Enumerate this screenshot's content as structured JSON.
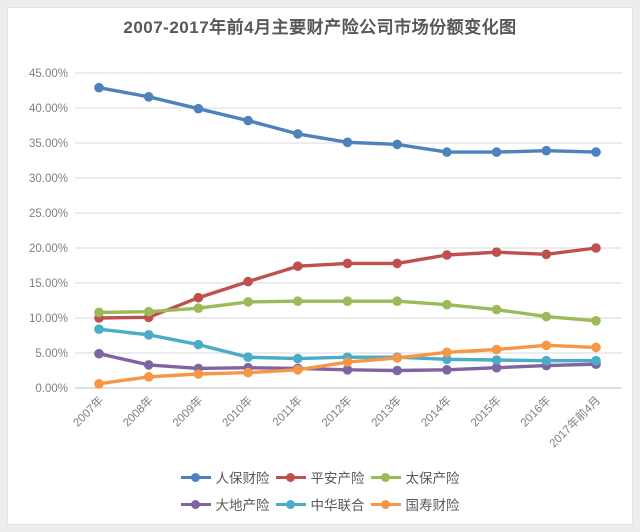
{
  "chart_data": {
    "type": "line",
    "title": "2007-2017年前4月主要财产险公司市场份额变化图",
    "xlabel": "",
    "ylabel": "",
    "ylim": [
      0,
      45
    ],
    "grid": true,
    "legend_position": "bottom",
    "y_ticks": [
      "0.00%",
      "5.00%",
      "10.00%",
      "15.00%",
      "20.00%",
      "25.00%",
      "30.00%",
      "35.00%",
      "40.00%",
      "45.00%"
    ],
    "categories": [
      "2007年",
      "2008年",
      "2009年",
      "2010年",
      "2011年",
      "2012年",
      "2013年",
      "2014年",
      "2015年",
      "2016年",
      "2017年前4月"
    ],
    "series": [
      {
        "key": "picc",
        "name": "人保财险",
        "color": "#4F81BD",
        "values": [
          42.9,
          41.6,
          39.9,
          38.2,
          36.3,
          35.1,
          34.8,
          33.7,
          33.7,
          33.9,
          33.7
        ]
      },
      {
        "key": "pingan",
        "name": "平安产险",
        "color": "#C0504D",
        "values": [
          10.0,
          10.1,
          12.9,
          15.2,
          17.4,
          17.8,
          17.8,
          19.0,
          19.4,
          19.1,
          20.0
        ]
      },
      {
        "key": "cpic",
        "name": "太保产险",
        "color": "#9BBB59",
        "values": [
          10.8,
          10.9,
          11.4,
          12.3,
          12.4,
          12.4,
          12.4,
          11.9,
          11.2,
          10.2,
          9.6
        ]
      },
      {
        "key": "dadi",
        "name": "大地产险",
        "color": "#8064A2",
        "values": [
          4.9,
          3.3,
          2.8,
          2.9,
          2.8,
          2.6,
          2.5,
          2.6,
          2.9,
          3.2,
          3.4
        ]
      },
      {
        "key": "zhonghua",
        "name": "中华联合",
        "color": "#4BACC6",
        "values": [
          8.4,
          7.6,
          6.2,
          4.4,
          4.2,
          4.4,
          4.4,
          4.1,
          4.0,
          3.9,
          3.9
        ]
      },
      {
        "key": "guoshou",
        "name": "国寿财险",
        "color": "#F79646",
        "values": [
          0.6,
          1.6,
          2.0,
          2.2,
          2.6,
          3.7,
          4.3,
          5.1,
          5.5,
          6.1,
          5.8
        ]
      }
    ],
    "legend_rows": [
      [
        "picc",
        "pingan",
        "cpic"
      ],
      [
        "dadi",
        "zhonghua",
        "guoshou"
      ]
    ]
  },
  "style": {
    "grid_color": "#d9d9d9",
    "axis_color": "#bfbfbf",
    "tick_label_color": "#808080",
    "title_color": "#575757",
    "legend_text_color": "#595959",
    "plot_background": "#ffffff"
  }
}
